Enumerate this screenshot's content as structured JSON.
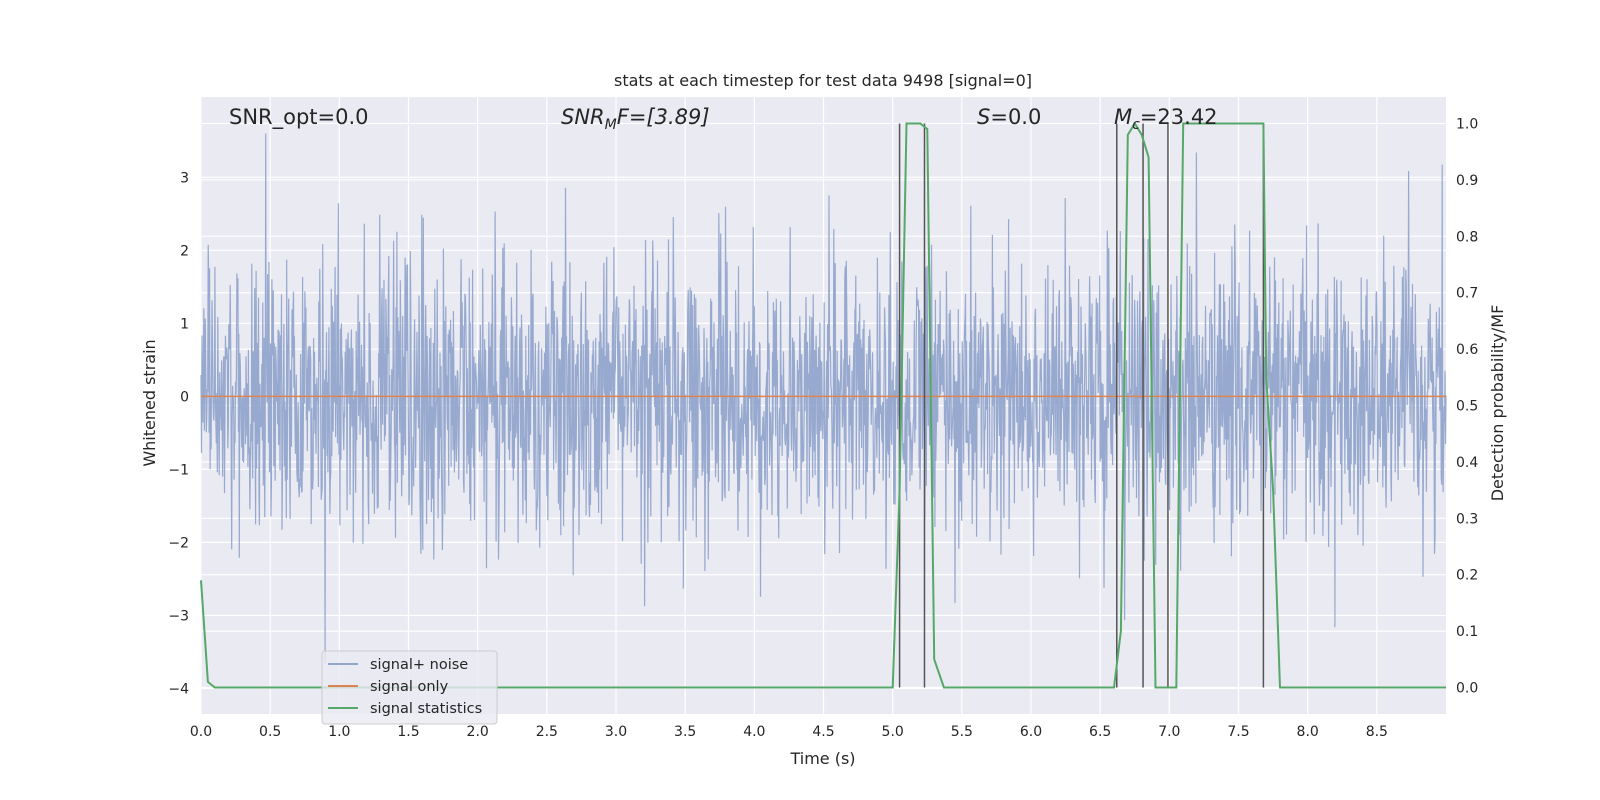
{
  "chart_data": {
    "type": "line",
    "title": "stats at each timestep for test data 9498 [signal=0]",
    "xlabel": "Time (s)",
    "ylabel_left": "Whitened strain",
    "ylabel_right": "Detection probability/MF",
    "xlim": [
      0.0,
      9.0
    ],
    "ylim_left": [
      -4.35,
      4.1
    ],
    "ylim_right": [
      -0.047,
      1.047
    ],
    "x_ticks": [
      "0.0",
      "0.5",
      "1.0",
      "1.5",
      "2.0",
      "2.5",
      "3.0",
      "3.5",
      "4.0",
      "4.5",
      "5.0",
      "5.5",
      "6.0",
      "6.5",
      "7.0",
      "7.5",
      "8.0",
      "8.5"
    ],
    "y_ticks_left": [
      "3",
      "2",
      "1",
      "0",
      "−1",
      "−2",
      "−3",
      "−4"
    ],
    "y_ticks_right": [
      "1.0",
      "0.9",
      "0.8",
      "0.7",
      "0.6",
      "0.5",
      "0.4",
      "0.3",
      "0.2",
      "0.1",
      "0.0"
    ],
    "grid": true,
    "legend_position": "lower-left",
    "annotations": {
      "snr_opt": "SNR_opt=0.0",
      "snr_mf_main": "SNR",
      "snr_mf_sub": "M",
      "snr_mf_rest": "F=[3.89]",
      "s_main": "S",
      "s_rest": "=0.0",
      "mc_main": "M",
      "mc_sub": "c",
      "mc_rest": "=23.42"
    },
    "series": [
      {
        "name": "signal+ noise",
        "color": "#92a5cc",
        "description_of_values": "whitened noise trace spanning roughly -3.6 to 3.6",
        "envelope_typical": [
          -1.7,
          1.6
        ]
      },
      {
        "name": "signal only",
        "color": "#dd8452",
        "x": [
          0.0,
          9.0
        ],
        "y": [
          0.0,
          0.0
        ]
      },
      {
        "name": "signal statistics",
        "color": "#55a868",
        "x": [
          0.0,
          0.05,
          0.1,
          5.0,
          5.05,
          5.1,
          5.2,
          5.25,
          5.3,
          5.37,
          6.6,
          6.65,
          6.7,
          6.75,
          6.8,
          6.85,
          6.9,
          6.95,
          7.05,
          7.1,
          7.68,
          7.7,
          7.75,
          7.8,
          9.0
        ],
        "y": [
          0.19,
          0.01,
          0.0,
          0.0,
          0.35,
          1.0,
          1.0,
          0.99,
          0.05,
          0.0,
          0.0,
          0.1,
          0.98,
          1.0,
          0.98,
          0.94,
          0.0,
          0.0,
          0.0,
          1.0,
          1.0,
          0.55,
          0.35,
          0.0,
          0.0
        ]
      }
    ],
    "vertical_markers_x": [
      5.05,
      5.23,
      6.62,
      6.81,
      6.99,
      7.68
    ]
  }
}
